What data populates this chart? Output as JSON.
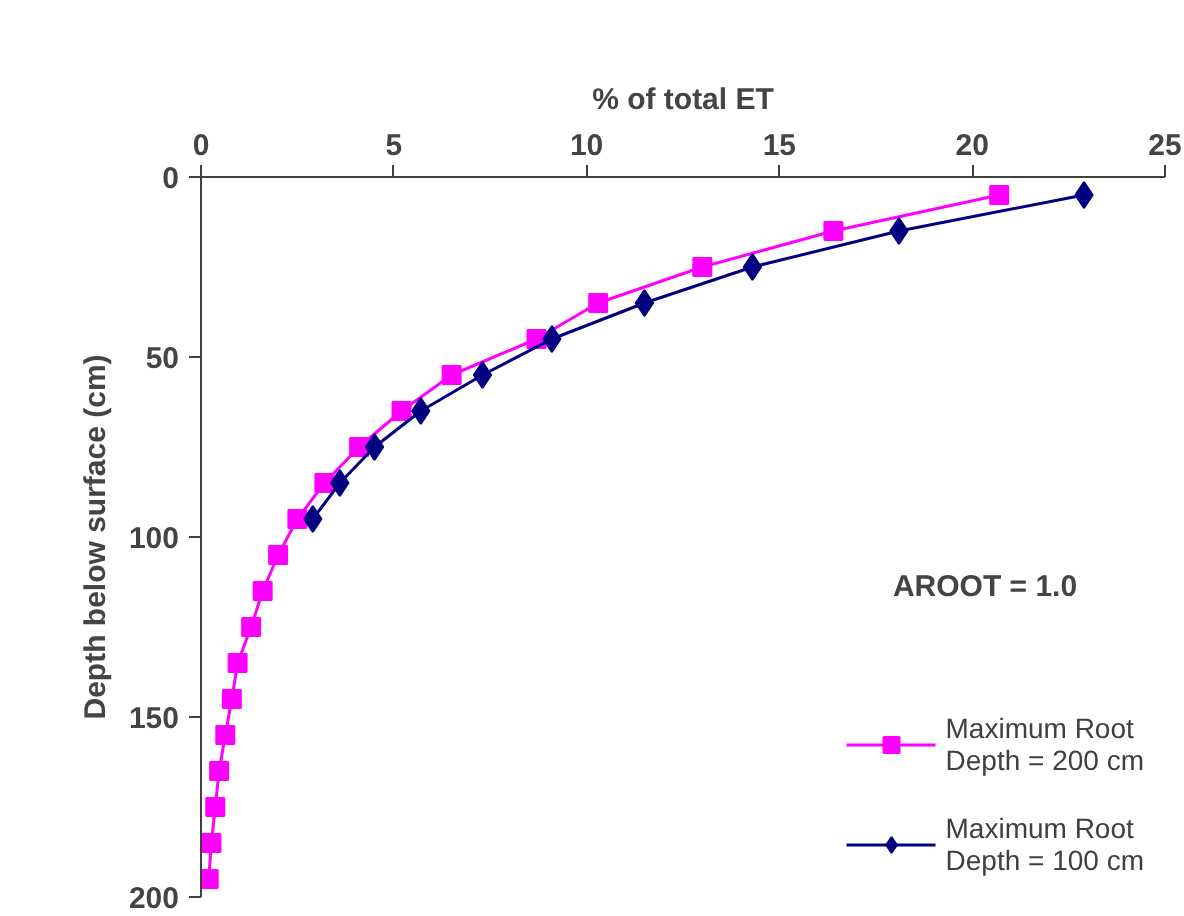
{
  "chart_data": {
    "type": "line",
    "xlabel": "% of total ET",
    "ylabel": "Depth below surface (cm)",
    "xlim": [
      0,
      25
    ],
    "xticks": [
      0,
      5,
      10,
      15,
      20,
      25
    ],
    "ylim": [
      200,
      0
    ],
    "yticks": [
      0,
      50,
      100,
      150,
      200
    ],
    "grid": false,
    "legend": "bottom right",
    "annotations": [
      {
        "text": "AROOT = 1.0"
      }
    ],
    "series": [
      {
        "name": "Maximum Root\nDepth = 200 cm",
        "color": "#ff00ff",
        "marker": "square",
        "x": [
          20.7,
          16.4,
          13.0,
          10.3,
          8.7,
          6.5,
          5.2,
          4.1,
          3.2,
          2.5,
          2.0,
          1.6,
          1.3,
          0.95,
          0.8,
          0.63,
          0.47,
          0.37,
          0.27,
          0.2
        ],
        "values": [
          5,
          15,
          25,
          35,
          45,
          55,
          65,
          75,
          85,
          95,
          105,
          115,
          125,
          135,
          145,
          155,
          165,
          175,
          185,
          195
        ]
      },
      {
        "name": "Maximum Root\nDepth = 100 cm",
        "color": "#000080",
        "marker": "diamond",
        "x": [
          22.9,
          18.1,
          14.3,
          11.5,
          9.1,
          7.3,
          5.7,
          4.5,
          3.6,
          2.9
        ],
        "values": [
          5,
          15,
          25,
          35,
          45,
          55,
          65,
          75,
          85,
          95
        ]
      }
    ]
  }
}
